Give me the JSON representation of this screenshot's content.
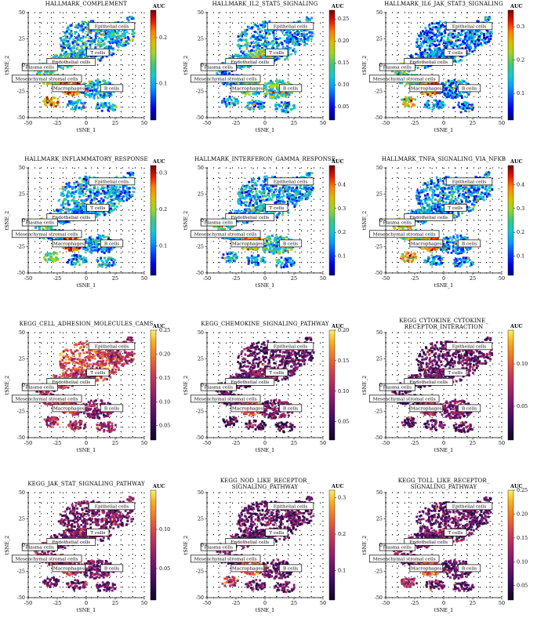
{
  "figure": {
    "x_label": "tSNE_1",
    "y_label": "tSNE_2",
    "colorbar_label": "AUC",
    "axis_ticks": [
      "-50",
      "-25",
      "0",
      "25",
      "50"
    ],
    "cell_types": [
      "Epithelial cells",
      "T cells",
      "Endothelial cells",
      "Plasma cells",
      "Mesenchymal stromal cells",
      "Macrophages",
      "B cells"
    ]
  },
  "chart_data": [
    {
      "type": "scatter",
      "title": [
        "HALLMARK_COMPLEMENT"
      ],
      "colormap": "jet",
      "xlim": [
        -50,
        50
      ],
      "ylim": [
        -50,
        50
      ],
      "colorbar_ticks": [
        "0.2",
        "0.1"
      ],
      "colorbar_range": [
        0.02,
        0.26
      ]
    },
    {
      "type": "scatter",
      "title": [
        "HALLMARK_IL2_STAT5_SIGNALING"
      ],
      "colormap": "jet",
      "xlim": [
        -50,
        50
      ],
      "ylim": [
        -50,
        50
      ],
      "colorbar_ticks": [
        "0.25",
        "0.20",
        "0.15",
        "0.10",
        "0.05"
      ],
      "colorbar_range": [
        0.02,
        0.27
      ]
    },
    {
      "type": "scatter",
      "title": [
        "HALLMARK_IL6_JAK_STAT3_SIGNALING"
      ],
      "colormap": "jet",
      "xlim": [
        -50,
        50
      ],
      "ylim": [
        -50,
        50
      ],
      "colorbar_ticks": [
        "0.3",
        "0.2",
        "0.1"
      ],
      "colorbar_range": [
        0.02,
        0.35
      ]
    },
    {
      "type": "scatter",
      "title": [
        "HALLMARK_INFLAMMATORY_RESPONSE"
      ],
      "colormap": "jet",
      "xlim": [
        -50,
        50
      ],
      "ylim": [
        -50,
        50
      ],
      "colorbar_ticks": [
        "0.3",
        "0.2",
        "0.1"
      ],
      "colorbar_range": [
        0.02,
        0.32
      ]
    },
    {
      "type": "scatter",
      "title": [
        "HALLMARK_INTERFERON_GAMMA_RESPONSE"
      ],
      "colormap": "jet",
      "xlim": [
        -50,
        50
      ],
      "ylim": [
        -50,
        50
      ],
      "colorbar_ticks": [
        "0.4",
        "0.3",
        "0.2",
        "0.1"
      ],
      "colorbar_range": [
        0.02,
        0.48
      ]
    },
    {
      "type": "scatter",
      "title": [
        "HALLMARK_TNFA_SIGNALING_VIA_NFKB"
      ],
      "colormap": "jet",
      "xlim": [
        -50,
        50
      ],
      "ylim": [
        -50,
        50
      ],
      "colorbar_ticks": [
        "0.4",
        "0.3",
        "0.2",
        "0.1"
      ],
      "colorbar_range": [
        0.02,
        0.48
      ]
    },
    {
      "type": "scatter",
      "title": [
        "KEGG_CELL_ADHESION_MOLECULES_CAMS"
      ],
      "colormap": "inferno",
      "xlim": [
        -50,
        50
      ],
      "ylim": [
        -50,
        50
      ],
      "colorbar_ticks": [
        "0.25",
        "0.20",
        "0.15",
        "0.10",
        "0.05"
      ],
      "colorbar_range": [
        0.02,
        0.25
      ]
    },
    {
      "type": "scatter",
      "title": [
        "KEGG_CHEMOKINE_SIGNALING_PATHWAY"
      ],
      "colormap": "inferno",
      "xlim": [
        -50,
        50
      ],
      "ylim": [
        -50,
        50
      ],
      "colorbar_ticks": [
        "0.20",
        "0.15",
        "0.10",
        "0.05"
      ],
      "colorbar_range": [
        0.02,
        0.2
      ]
    },
    {
      "type": "scatter",
      "title": [
        "KEGG_CYTOKINE_CYTOKINE_",
        "RECEPTOR_INTERACTION"
      ],
      "colormap": "inferno",
      "xlim": [
        -50,
        50
      ],
      "ylim": [
        -50,
        50
      ],
      "colorbar_ticks": [
        "0.10",
        "0.05"
      ],
      "colorbar_range": [
        0.01,
        0.14
      ]
    },
    {
      "type": "scatter",
      "title": [
        "KEGG_JAK_STAT_SIGNALING_PATHWAY"
      ],
      "colormap": "inferno",
      "xlim": [
        -50,
        50
      ],
      "ylim": [
        -50,
        50
      ],
      "colorbar_ticks": [
        "0.10",
        "0.05"
      ],
      "colorbar_range": [
        0.01,
        0.15
      ]
    },
    {
      "type": "scatter",
      "title": [
        "KEGG_NOD_LIKE_RECEPTOR_",
        "SIGNALING_PATHWAY"
      ],
      "colormap": "inferno",
      "xlim": [
        -50,
        50
      ],
      "ylim": [
        -50,
        50
      ],
      "colorbar_ticks": [
        "0.3",
        "0.2",
        "0.1"
      ],
      "colorbar_range": [
        0.02,
        0.32
      ]
    },
    {
      "type": "scatter",
      "title": [
        "KEGG_TOLL_LIKE_RECEPTOR_",
        "SIGNALING_PATHWAY"
      ],
      "colormap": "inferno",
      "xlim": [
        -50,
        50
      ],
      "ylim": [
        -50,
        50
      ],
      "colorbar_ticks": [
        "0.25",
        "0.20",
        "0.15",
        "0.10",
        "0.05"
      ],
      "colorbar_range": [
        0.02,
        0.25
      ]
    }
  ]
}
